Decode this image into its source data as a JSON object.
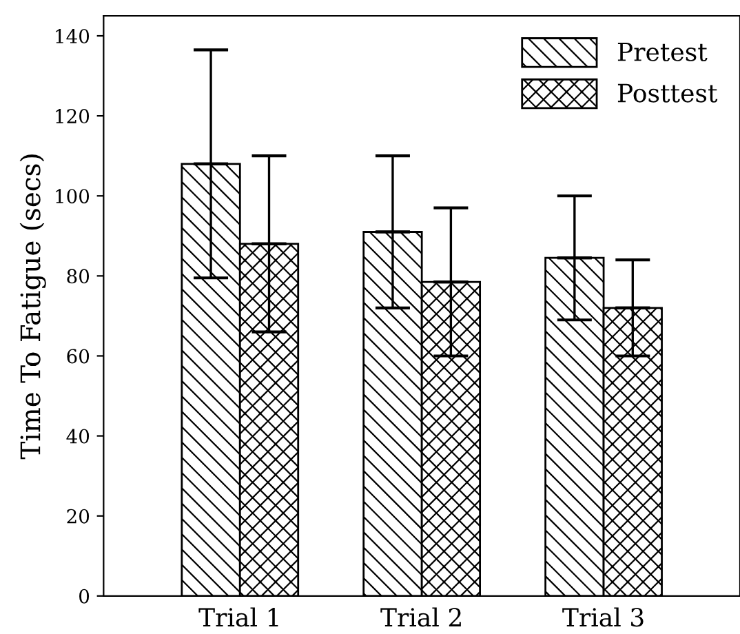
{
  "chart_data": {
    "type": "bar",
    "ylabel": "Time To Fatigue (secs)",
    "categories": [
      "Trial 1",
      "Trial 2",
      "Trial 3"
    ],
    "series": [
      {
        "name": "Pretest",
        "color": "#000000",
        "values": [
          108,
          91,
          84.5
        ],
        "errors": [
          28.5,
          19,
          15.5
        ]
      },
      {
        "name": "Posttest",
        "color": "#000000",
        "values": [
          88,
          78.5,
          72
        ],
        "errors": [
          22,
          18.5,
          12
        ]
      }
    ],
    "ylim": [
      0,
      145
    ],
    "yticks": [
      0,
      20,
      40,
      60,
      80,
      100,
      120,
      140
    ],
    "grid": false,
    "legend": "top right"
  }
}
